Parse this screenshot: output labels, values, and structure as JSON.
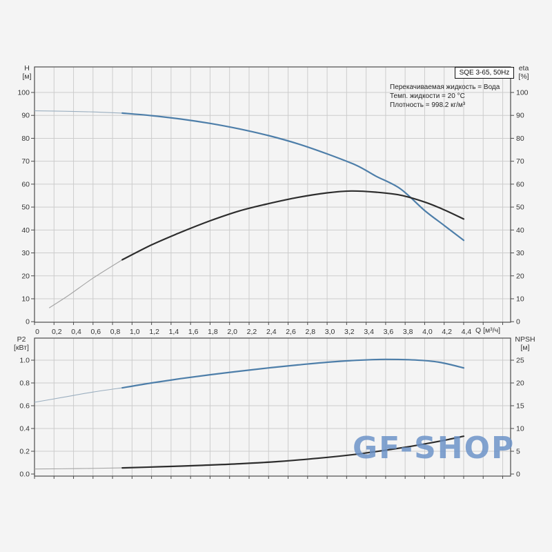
{
  "title_box": {
    "label": "SQE 3-65, 50Hz"
  },
  "info": {
    "line1": "Перекачиваемая жидкость = Вода",
    "line2": "Темп. жидкости = 20 °C",
    "line3": "Плотность = 998.2 кг/м³"
  },
  "watermark": "GF-SHOP",
  "colors": {
    "curve_blue": "#4d7ea9",
    "curve_blue_thin": "#9aaebf",
    "curve_black": "#2d2d2d",
    "curve_black_thin": "#a3a3a3",
    "grid": "#cccccc",
    "frame": "#4a4a4a",
    "tick_text": "#333333",
    "watermark": "rgba(108,147,200,0.85)"
  },
  "chart_data": [
    {
      "type": "line",
      "name": "head-efficiency-curves",
      "xlabel": "Q [м³/ч]",
      "ylabel_left_l1": "H",
      "ylabel_left_l2": "[м]",
      "ylabel_right_l1": "eta",
      "ylabel_right_l2": "[%]",
      "xlim": [
        0,
        4.86
      ],
      "ylim_left": [
        0,
        100
      ],
      "ylim_right": [
        0,
        100
      ],
      "x_ticks": {
        "values": [
          0,
          0.2,
          0.4,
          0.6,
          0.8,
          1.0,
          1.2,
          1.4,
          1.6,
          1.8,
          2.0,
          2.2,
          2.4,
          2.6,
          2.8,
          3.0,
          3.2,
          3.4,
          3.6,
          3.8,
          4.0,
          4.2,
          4.4
        ],
        "labels": [
          "0",
          "0,2",
          "0,4",
          "0,6",
          "0,8",
          "1,0",
          "1,2",
          "1,4",
          "1,6",
          "1,8",
          "2,0",
          "2,2",
          "2,4",
          "2,6",
          "2,8",
          "3,0",
          "3,2",
          "3,4",
          "3,6",
          "3,8",
          "4,0",
          "4,2",
          "4,4"
        ]
      },
      "y_ticks_left": {
        "values": [
          0,
          10,
          20,
          30,
          40,
          50,
          60,
          70,
          80,
          90,
          100
        ],
        "labels": [
          "0",
          "10",
          "20",
          "30",
          "40",
          "50",
          "60",
          "70",
          "80",
          "90",
          "100"
        ]
      },
      "y_ticks_right": {
        "values": [
          0,
          10,
          20,
          30,
          40,
          50,
          60,
          70,
          80,
          90,
          100
        ],
        "labels": [
          "0",
          "10",
          "20",
          "30",
          "40",
          "50",
          "60",
          "70",
          "80",
          "90",
          "100"
        ]
      },
      "series": [
        {
          "name": "H(Q)",
          "axis": "left",
          "color_key": "curve_blue",
          "thin_color_key": "curve_blue_thin",
          "split_at": 0.9,
          "points": [
            [
              0,
              92
            ],
            [
              0.3,
              91.8
            ],
            [
              0.6,
              91.5
            ],
            [
              0.9,
              91.0
            ],
            [
              1.2,
              89.9
            ],
            [
              1.5,
              88.4
            ],
            [
              1.8,
              86.5
            ],
            [
              2.1,
              84.1
            ],
            [
              2.4,
              81.2
            ],
            [
              2.7,
              77.6
            ],
            [
              3.0,
              73.2
            ],
            [
              3.3,
              68.2
            ],
            [
              3.5,
              63.5
            ],
            [
              3.75,
              58.0
            ],
            [
              4.0,
              48.5
            ],
            [
              4.2,
              42.0
            ],
            [
              4.4,
              35.5
            ]
          ]
        },
        {
          "name": "eta(Q)",
          "axis": "right",
          "color_key": "curve_black",
          "thin_color_key": "curve_black_thin",
          "split_at": 0.9,
          "points": [
            [
              0.15,
              6
            ],
            [
              0.35,
              11.5
            ],
            [
              0.6,
              19
            ],
            [
              0.9,
              27
            ],
            [
              1.2,
              33.5
            ],
            [
              1.5,
              39
            ],
            [
              1.8,
              44
            ],
            [
              2.1,
              48.3
            ],
            [
              2.4,
              51.5
            ],
            [
              2.7,
              54.2
            ],
            [
              3.0,
              56.2
            ],
            [
              3.25,
              57.0
            ],
            [
              3.5,
              56.5
            ],
            [
              3.75,
              55.2
            ],
            [
              4.0,
              52.2
            ],
            [
              4.2,
              48.8
            ],
            [
              4.4,
              44.8
            ]
          ]
        }
      ]
    },
    {
      "type": "line",
      "name": "power-npsh-curves",
      "xlabel": "",
      "ylabel_left_l1": "P2",
      "ylabel_left_l2": "[кВт]",
      "ylabel_right_l1": "NPSH",
      "ylabel_right_l2": "[м]",
      "xlim": [
        0,
        4.86
      ],
      "ylim_left": [
        0,
        1.0
      ],
      "ylim_right": [
        0,
        25
      ],
      "x_ticks": {
        "values": [],
        "labels": []
      },
      "y_ticks_left": {
        "values": [
          0,
          0.2,
          0.4,
          0.6,
          0.8,
          1.0
        ],
        "labels": [
          "0.0",
          "0.2",
          "0.4",
          "0.6",
          "0.8",
          "1.0"
        ]
      },
      "y_ticks_right": {
        "values": [
          0,
          5,
          10,
          15,
          20,
          25
        ],
        "labels": [
          "0",
          "5",
          "10",
          "15",
          "20",
          "25"
        ]
      },
      "series": [
        {
          "name": "P2(Q)",
          "axis": "left",
          "color_key": "curve_blue",
          "thin_color_key": "curve_blue_thin",
          "split_at": 0.9,
          "points": [
            [
              0,
              0.63
            ],
            [
              0.3,
              0.675
            ],
            [
              0.6,
              0.72
            ],
            [
              0.9,
              0.757
            ],
            [
              1.2,
              0.8
            ],
            [
              1.5,
              0.838
            ],
            [
              1.8,
              0.872
            ],
            [
              2.1,
              0.903
            ],
            [
              2.4,
              0.932
            ],
            [
              2.7,
              0.958
            ],
            [
              3.0,
              0.982
            ],
            [
              3.3,
              0.999
            ],
            [
              3.6,
              1.007
            ],
            [
              3.9,
              1.002
            ],
            [
              4.15,
              0.982
            ],
            [
              4.4,
              0.932
            ]
          ]
        },
        {
          "name": "NPSH(Q)",
          "axis": "right",
          "color_key": "curve_black",
          "thin_color_key": "curve_black_thin",
          "split_at": 0.9,
          "points": [
            [
              0,
              1.1
            ],
            [
              0.45,
              1.2
            ],
            [
              0.9,
              1.35
            ],
            [
              1.3,
              1.6
            ],
            [
              1.7,
              1.9
            ],
            [
              2.1,
              2.25
            ],
            [
              2.5,
              2.75
            ],
            [
              2.9,
              3.45
            ],
            [
              3.3,
              4.35
            ],
            [
              3.7,
              5.55
            ],
            [
              4.0,
              6.6
            ],
            [
              4.2,
              7.4
            ],
            [
              4.4,
              8.3
            ]
          ]
        }
      ]
    }
  ]
}
